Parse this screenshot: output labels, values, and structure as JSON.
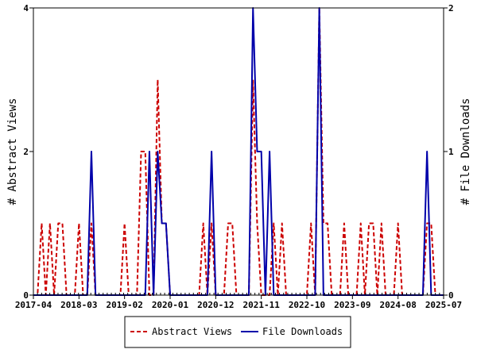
{
  "chart_data": {
    "type": "line",
    "title": "",
    "x_ticks": [
      "2017-04",
      "2018-03",
      "2019-02",
      "2020-01",
      "2020-12",
      "2021-11",
      "2022-10",
      "2023-09",
      "2024-08",
      "2025-07"
    ],
    "y_left": {
      "label": "# Abstract Views",
      "ticks": [
        "0",
        "2",
        "4"
      ],
      "range": [
        0,
        4
      ]
    },
    "y_right": {
      "label": "# File Downloads",
      "ticks": [
        "0",
        "1",
        "2"
      ],
      "range": [
        0,
        2
      ]
    },
    "x_range": [
      0,
      99
    ],
    "legend_position": "bottom",
    "grid": false,
    "series": [
      {
        "name": "Abstract Views",
        "axis": "left",
        "color": "#cc0000",
        "dash": "dashed",
        "points": [
          [
            0,
            0
          ],
          [
            1,
            0
          ],
          [
            2,
            1
          ],
          [
            3,
            0
          ],
          [
            4,
            1
          ],
          [
            5,
            0
          ],
          [
            6,
            1
          ],
          [
            7,
            1
          ],
          [
            8,
            0
          ],
          [
            9,
            0
          ],
          [
            10,
            0
          ],
          [
            11,
            1
          ],
          [
            12,
            0
          ],
          [
            13,
            0
          ],
          [
            14,
            1
          ],
          [
            15,
            0
          ],
          [
            16,
            0
          ],
          [
            17,
            0
          ],
          [
            18,
            0
          ],
          [
            19,
            0
          ],
          [
            20,
            0
          ],
          [
            21,
            0
          ],
          [
            22,
            1
          ],
          [
            23,
            0
          ],
          [
            24,
            0
          ],
          [
            25,
            0
          ],
          [
            26,
            2
          ],
          [
            27,
            2
          ],
          [
            28,
            0
          ],
          [
            29,
            0
          ],
          [
            30,
            3
          ],
          [
            31,
            1
          ],
          [
            32,
            1
          ],
          [
            33,
            0
          ],
          [
            34,
            0
          ],
          [
            35,
            0
          ],
          [
            36,
            0
          ],
          [
            37,
            0
          ],
          [
            38,
            0
          ],
          [
            39,
            0
          ],
          [
            40,
            0
          ],
          [
            41,
            1
          ],
          [
            42,
            0
          ],
          [
            43,
            1
          ],
          [
            44,
            0
          ],
          [
            45,
            0
          ],
          [
            46,
            0
          ],
          [
            47,
            1
          ],
          [
            48,
            1
          ],
          [
            49,
            0
          ],
          [
            50,
            0
          ],
          [
            51,
            0
          ],
          [
            52,
            0
          ],
          [
            53,
            3
          ],
          [
            54,
            1
          ],
          [
            55,
            0
          ],
          [
            56,
            0
          ],
          [
            57,
            0
          ],
          [
            58,
            1
          ],
          [
            59,
            0
          ],
          [
            60,
            1
          ],
          [
            61,
            0
          ],
          [
            62,
            0
          ],
          [
            63,
            0
          ],
          [
            64,
            0
          ],
          [
            65,
            0
          ],
          [
            66,
            0
          ],
          [
            67,
            1
          ],
          [
            68,
            0
          ],
          [
            69,
            4
          ],
          [
            70,
            1
          ],
          [
            71,
            1
          ],
          [
            72,
            0
          ],
          [
            73,
            0
          ],
          [
            74,
            0
          ],
          [
            75,
            1
          ],
          [
            76,
            0
          ],
          [
            77,
            0
          ],
          [
            78,
            0
          ],
          [
            79,
            1
          ],
          [
            80,
            0
          ],
          [
            81,
            1
          ],
          [
            82,
            1
          ],
          [
            83,
            0
          ],
          [
            84,
            1
          ],
          [
            85,
            0
          ],
          [
            86,
            0
          ],
          [
            87,
            0
          ],
          [
            88,
            1
          ],
          [
            89,
            0
          ],
          [
            90,
            0
          ],
          [
            91,
            0
          ],
          [
            92,
            0
          ],
          [
            93,
            0
          ],
          [
            94,
            0
          ],
          [
            95,
            1
          ],
          [
            96,
            1
          ],
          [
            97,
            0
          ],
          [
            98,
            0
          ],
          [
            99,
            0
          ]
        ]
      },
      {
        "name": "File Downloads",
        "axis": "right",
        "color": "#0000aa",
        "dash": "solid",
        "points": [
          [
            0,
            0
          ],
          [
            1,
            0
          ],
          [
            2,
            0
          ],
          [
            3,
            0
          ],
          [
            4,
            0
          ],
          [
            5,
            0
          ],
          [
            6,
            0
          ],
          [
            7,
            0
          ],
          [
            8,
            0
          ],
          [
            9,
            0
          ],
          [
            10,
            0
          ],
          [
            11,
            0
          ],
          [
            12,
            0
          ],
          [
            13,
            0
          ],
          [
            14,
            1
          ],
          [
            15,
            0
          ],
          [
            16,
            0
          ],
          [
            17,
            0
          ],
          [
            18,
            0
          ],
          [
            19,
            0
          ],
          [
            20,
            0
          ],
          [
            21,
            0
          ],
          [
            22,
            0
          ],
          [
            23,
            0
          ],
          [
            24,
            0
          ],
          [
            25,
            0
          ],
          [
            26,
            0
          ],
          [
            27,
            0
          ],
          [
            28,
            1
          ],
          [
            29,
            0
          ],
          [
            30,
            1
          ],
          [
            31,
            0.5
          ],
          [
            32,
            0.5
          ],
          [
            33,
            0
          ],
          [
            34,
            0
          ],
          [
            35,
            0
          ],
          [
            36,
            0
          ],
          [
            37,
            0
          ],
          [
            38,
            0
          ],
          [
            39,
            0
          ],
          [
            40,
            0
          ],
          [
            41,
            0
          ],
          [
            42,
            0
          ],
          [
            43,
            1
          ],
          [
            44,
            0
          ],
          [
            45,
            0
          ],
          [
            46,
            0
          ],
          [
            47,
            0
          ],
          [
            48,
            0
          ],
          [
            49,
            0
          ],
          [
            50,
            0
          ],
          [
            51,
            0
          ],
          [
            52,
            0
          ],
          [
            53,
            2
          ],
          [
            54,
            1
          ],
          [
            55,
            1
          ],
          [
            56,
            0
          ],
          [
            57,
            1
          ],
          [
            58,
            0
          ],
          [
            59,
            0
          ],
          [
            60,
            0
          ],
          [
            61,
            0
          ],
          [
            62,
            0
          ],
          [
            63,
            0
          ],
          [
            64,
            0
          ],
          [
            65,
            0
          ],
          [
            66,
            0
          ],
          [
            67,
            0
          ],
          [
            68,
            0
          ],
          [
            69,
            2
          ],
          [
            70,
            0
          ],
          [
            71,
            0
          ],
          [
            72,
            0
          ],
          [
            73,
            0
          ],
          [
            74,
            0
          ],
          [
            75,
            0
          ],
          [
            76,
            0
          ],
          [
            77,
            0
          ],
          [
            78,
            0
          ],
          [
            79,
            0
          ],
          [
            80,
            0
          ],
          [
            81,
            0
          ],
          [
            82,
            0
          ],
          [
            83,
            0
          ],
          [
            84,
            0
          ],
          [
            85,
            0
          ],
          [
            86,
            0
          ],
          [
            87,
            0
          ],
          [
            88,
            0
          ],
          [
            89,
            0
          ],
          [
            90,
            0
          ],
          [
            91,
            0
          ],
          [
            92,
            0
          ],
          [
            93,
            0
          ],
          [
            94,
            0
          ],
          [
            95,
            1
          ],
          [
            96,
            0
          ],
          [
            97,
            0
          ],
          [
            98,
            0
          ],
          [
            99,
            0
          ]
        ]
      }
    ]
  }
}
